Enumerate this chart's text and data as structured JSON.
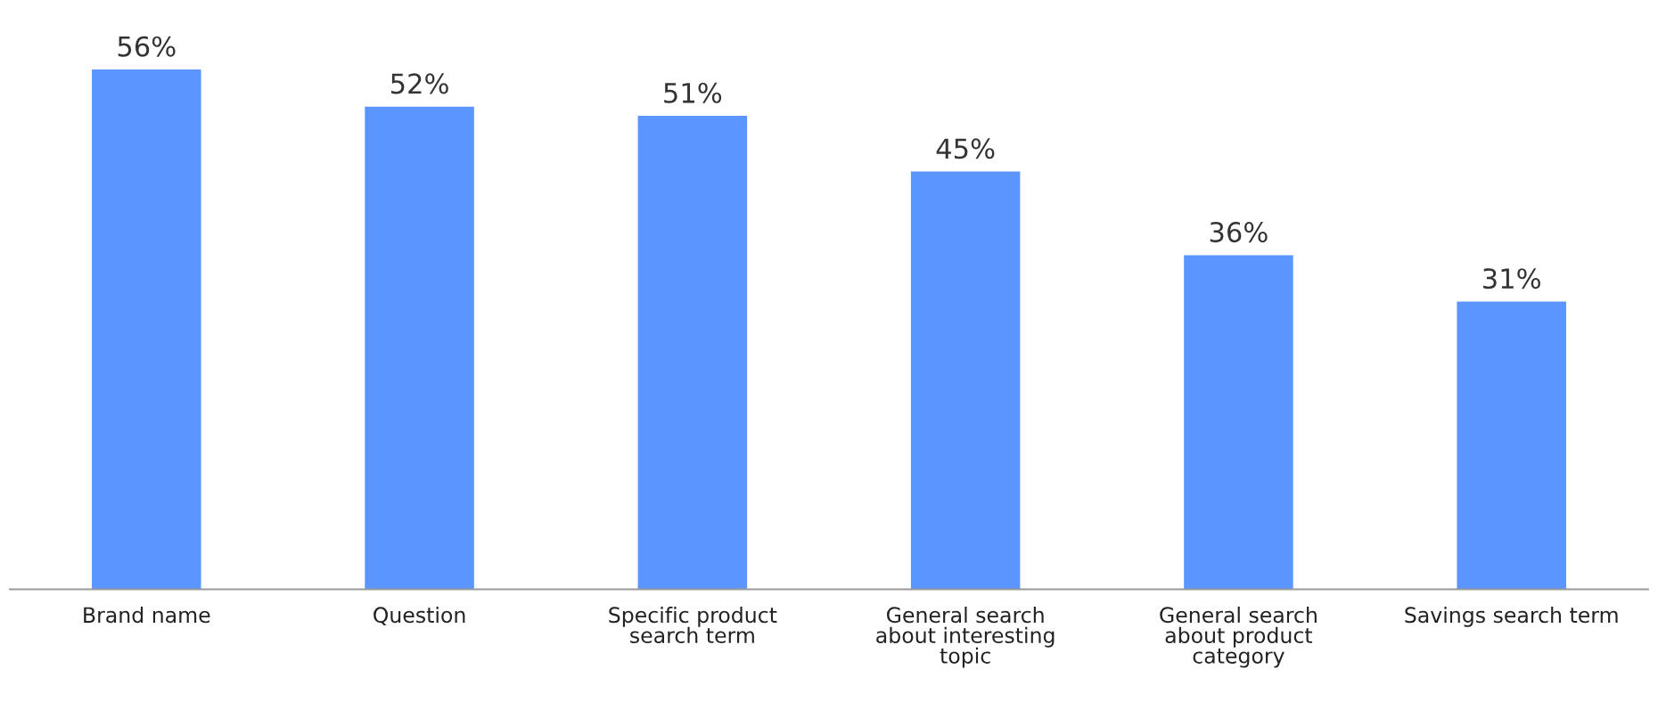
{
  "chart_data": {
    "type": "bar",
    "categories": [
      "Brand name",
      "Question",
      "Specific product\nsearch term",
      "General search\nabout interesting\ntopic",
      "General search\nabout product\ncategory",
      "Savings search term"
    ],
    "values": [
      56,
      52,
      51,
      45,
      36,
      31
    ],
    "value_labels": [
      "56%",
      "52%",
      "51%",
      "45%",
      "36%",
      "31%"
    ],
    "color": "#5b95ff",
    "grid": false,
    "legend": false
  }
}
